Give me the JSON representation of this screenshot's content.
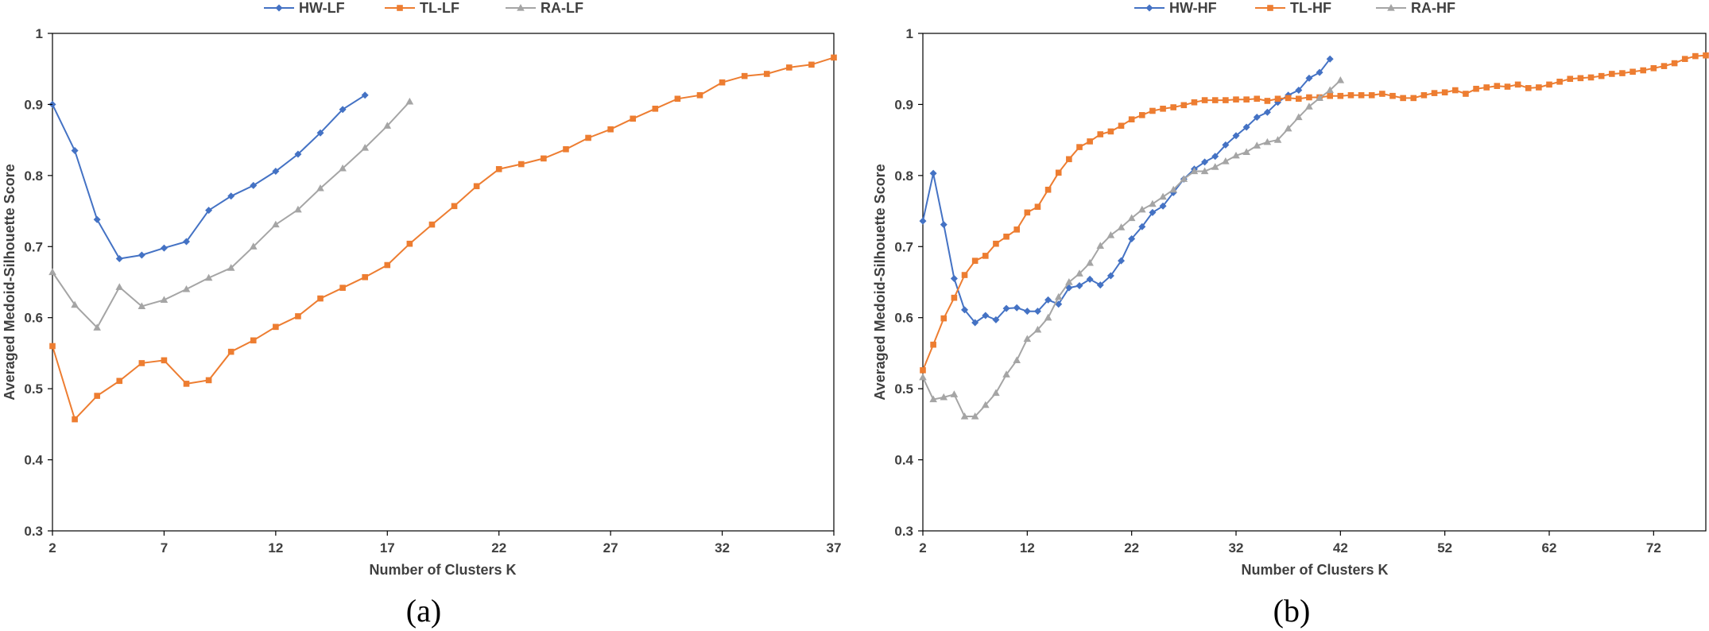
{
  "colors": {
    "HW": "#4472C4",
    "TL": "#ED7D31",
    "RA": "#A5A5A5"
  },
  "chart_data": [
    {
      "type": "line",
      "panel_label": "(a)",
      "xlabel": "Number of Clusters K",
      "ylabel": "Averaged Medoid-Silhouette Score",
      "xlim": [
        2,
        37
      ],
      "ylim": [
        0.3,
        1
      ],
      "xticks": [
        2,
        7,
        12,
        17,
        22,
        27,
        32,
        37
      ],
      "yticks": [
        0.3,
        0.4,
        0.5,
        0.6,
        0.7,
        0.8,
        0.9,
        1
      ],
      "grid": false,
      "legend_position": "top-center",
      "series": [
        {
          "name": "HW-LF",
          "marker": "diamond",
          "color": "#4472C4",
          "x": [
            2,
            3,
            4,
            5,
            6,
            7,
            8,
            9,
            10,
            11,
            12,
            13,
            14,
            15,
            16
          ],
          "y": [
            0.9,
            0.835,
            0.738,
            0.683,
            0.688,
            0.698,
            0.707,
            0.751,
            0.771,
            0.786,
            0.806,
            0.83,
            0.86,
            0.893,
            0.913
          ]
        },
        {
          "name": "TL-LF",
          "marker": "square",
          "color": "#ED7D31",
          "x": [
            2,
            3,
            4,
            5,
            6,
            7,
            8,
            9,
            10,
            11,
            12,
            13,
            14,
            15,
            16,
            17,
            18,
            19,
            20,
            21,
            22,
            23,
            24,
            25,
            26,
            27,
            28,
            29,
            30,
            31,
            32,
            33,
            34,
            35,
            36,
            37
          ],
          "y": [
            0.56,
            0.457,
            0.49,
            0.511,
            0.536,
            0.54,
            0.507,
            0.512,
            0.552,
            0.568,
            0.587,
            0.602,
            0.627,
            0.642,
            0.657,
            0.674,
            0.704,
            0.731,
            0.757,
            0.785,
            0.809,
            0.816,
            0.824,
            0.837,
            0.853,
            0.865,
            0.88,
            0.894,
            0.908,
            0.913,
            0.931,
            0.94,
            0.943,
            0.952,
            0.956,
            0.966
          ]
        },
        {
          "name": "RA-LF",
          "marker": "triangle",
          "color": "#A5A5A5",
          "x": [
            2,
            3,
            4,
            5,
            6,
            7,
            8,
            9,
            10,
            11,
            12,
            13,
            14,
            15,
            16,
            17,
            18
          ],
          "y": [
            0.664,
            0.618,
            0.586,
            0.643,
            0.616,
            0.625,
            0.64,
            0.656,
            0.67,
            0.7,
            0.731,
            0.752,
            0.782,
            0.81,
            0.839,
            0.87,
            0.904
          ]
        }
      ]
    },
    {
      "type": "line",
      "panel_label": "(b)",
      "xlabel": "Number of Clusters K",
      "ylabel": "Averaged Medoid-Silhouette Score",
      "xlim": [
        2,
        77
      ],
      "ylim": [
        0.3,
        1
      ],
      "xticks": [
        2,
        12,
        22,
        32,
        42,
        52,
        62,
        72
      ],
      "yticks": [
        0.3,
        0.4,
        0.5,
        0.6,
        0.7,
        0.8,
        0.9,
        1
      ],
      "grid": false,
      "legend_position": "top-center",
      "series": [
        {
          "name": "HW-HF",
          "marker": "diamond",
          "color": "#4472C4",
          "x": [
            2,
            3,
            4,
            5,
            6,
            7,
            8,
            9,
            10,
            11,
            12,
            13,
            14,
            15,
            16,
            17,
            18,
            19,
            20,
            21,
            22,
            23,
            24,
            25,
            26,
            27,
            28,
            29,
            30,
            31,
            32,
            33,
            34,
            35,
            36,
            37,
            38,
            39,
            40,
            41
          ],
          "y": [
            0.736,
            0.803,
            0.731,
            0.655,
            0.611,
            0.593,
            0.603,
            0.597,
            0.613,
            0.614,
            0.609,
            0.609,
            0.625,
            0.619,
            0.642,
            0.645,
            0.654,
            0.646,
            0.659,
            0.68,
            0.711,
            0.728,
            0.748,
            0.757,
            0.776,
            0.795,
            0.809,
            0.819,
            0.827,
            0.843,
            0.856,
            0.868,
            0.882,
            0.889,
            0.903,
            0.913,
            0.92,
            0.937,
            0.945,
            0.964
          ]
        },
        {
          "name": "TL-HF",
          "marker": "square",
          "color": "#ED7D31",
          "x": [
            2,
            3,
            4,
            5,
            6,
            7,
            8,
            9,
            10,
            11,
            12,
            13,
            14,
            15,
            16,
            17,
            18,
            19,
            20,
            21,
            22,
            23,
            24,
            25,
            26,
            27,
            28,
            29,
            30,
            31,
            32,
            33,
            34,
            35,
            36,
            37,
            38,
            39,
            40,
            41,
            42,
            43,
            44,
            45,
            46,
            47,
            48,
            49,
            50,
            51,
            52,
            53,
            54,
            55,
            56,
            57,
            58,
            59,
            60,
            61,
            62,
            63,
            64,
            65,
            66,
            67,
            68,
            69,
            70,
            71,
            72,
            73,
            74,
            75,
            76,
            77
          ],
          "y": [
            0.526,
            0.562,
            0.599,
            0.628,
            0.66,
            0.68,
            0.687,
            0.704,
            0.714,
            0.724,
            0.748,
            0.756,
            0.78,
            0.804,
            0.823,
            0.84,
            0.848,
            0.858,
            0.862,
            0.87,
            0.879,
            0.885,
            0.891,
            0.894,
            0.896,
            0.899,
            0.903,
            0.906,
            0.906,
            0.906,
            0.907,
            0.907,
            0.908,
            0.905,
            0.908,
            0.909,
            0.908,
            0.91,
            0.91,
            0.912,
            0.912,
            0.913,
            0.913,
            0.913,
            0.915,
            0.912,
            0.909,
            0.909,
            0.913,
            0.916,
            0.917,
            0.92,
            0.915,
            0.922,
            0.924,
            0.926,
            0.925,
            0.928,
            0.923,
            0.924,
            0.928,
            0.932,
            0.936,
            0.937,
            0.938,
            0.94,
            0.943,
            0.944,
            0.946,
            0.948,
            0.951,
            0.954,
            0.958,
            0.964,
            0.968,
            0.969
          ]
        },
        {
          "name": "RA-HF",
          "marker": "triangle",
          "color": "#A5A5A5",
          "x": [
            2,
            3,
            4,
            5,
            6,
            7,
            8,
            9,
            10,
            11,
            12,
            13,
            14,
            15,
            16,
            17,
            18,
            19,
            20,
            21,
            22,
            23,
            24,
            25,
            26,
            27,
            28,
            29,
            30,
            31,
            32,
            33,
            34,
            35,
            36,
            37,
            38,
            39,
            40,
            41,
            42
          ],
          "y": [
            0.516,
            0.485,
            0.488,
            0.492,
            0.461,
            0.461,
            0.477,
            0.494,
            0.52,
            0.54,
            0.57,
            0.583,
            0.6,
            0.629,
            0.65,
            0.662,
            0.677,
            0.701,
            0.716,
            0.727,
            0.74,
            0.752,
            0.76,
            0.77,
            0.78,
            0.795,
            0.806,
            0.806,
            0.812,
            0.82,
            0.828,
            0.833,
            0.842,
            0.847,
            0.85,
            0.866,
            0.882,
            0.897,
            0.909,
            0.92,
            0.934
          ]
        }
      ]
    }
  ]
}
